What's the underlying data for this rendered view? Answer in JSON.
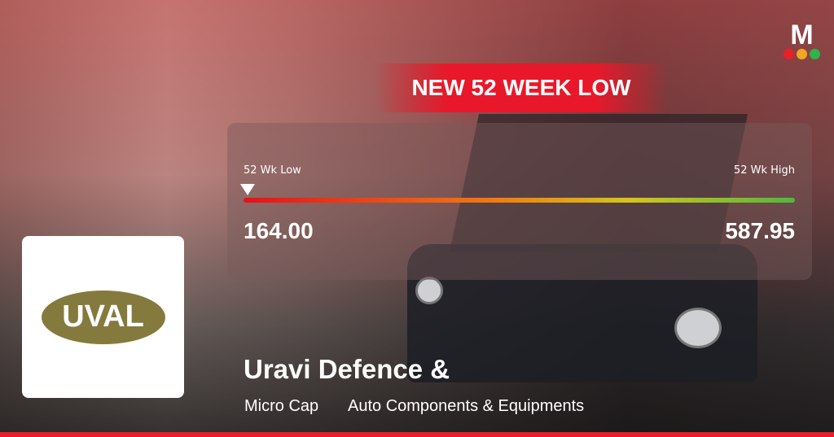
{
  "banner": "NEW 52 WEEK LOW",
  "range": {
    "low_label": "52 Wk Low",
    "high_label": "52 Wk High",
    "low": "164.00",
    "high": "587.95",
    "current_position_pct": 0
  },
  "company": {
    "logo_text": "UVAL",
    "name": "Uravi Defence &",
    "cap": "Micro Cap",
    "sector": "Auto Components & Equipments"
  },
  "brand": {
    "logo_letter": "M",
    "dot_colors": [
      "#e8202a",
      "#f2a621",
      "#2fb34a"
    ]
  },
  "colors": {
    "accent": "#ee1b2a",
    "logo_oval": "#857a3e"
  }
}
